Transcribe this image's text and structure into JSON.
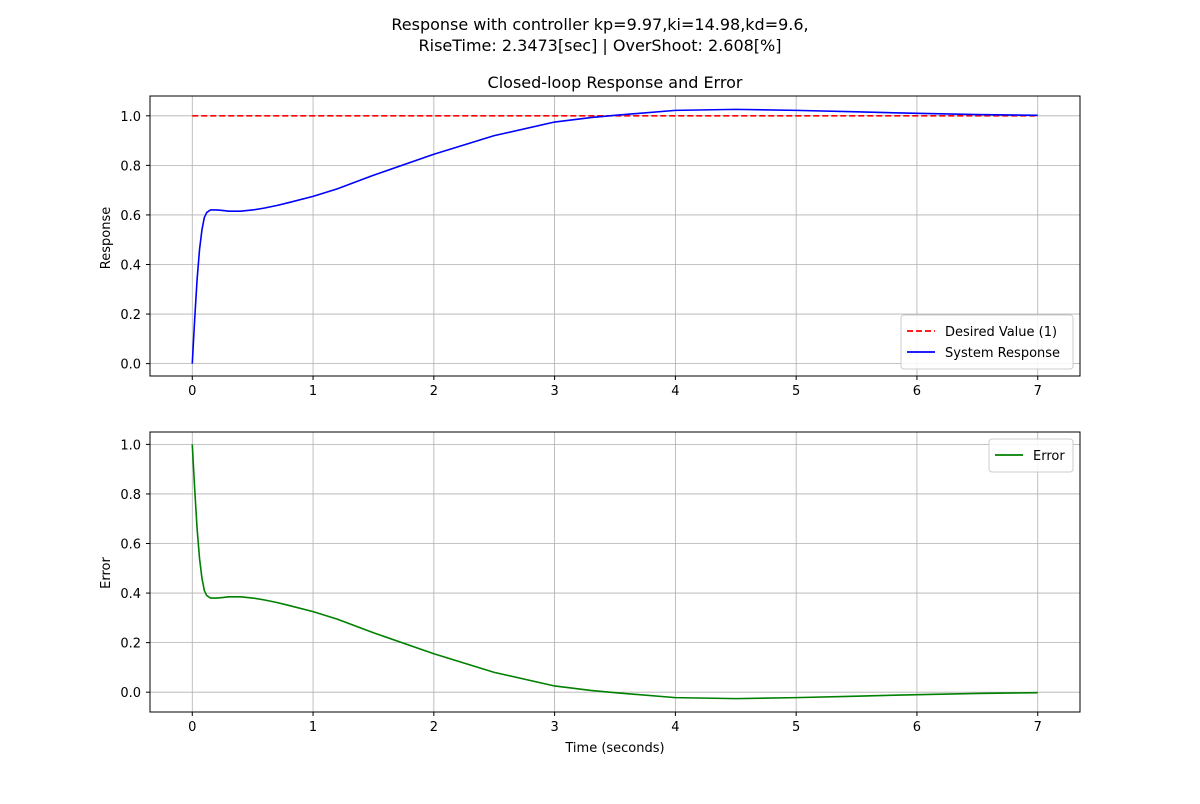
{
  "figure": {
    "suptitle_line1": "Response with controller kp=9.97,ki=14.98,kd=9.6,",
    "suptitle_line2": "RiseTime: 2.3473[sec] | OverShoot: 2.608[%]"
  },
  "colors": {
    "desired": "#ff0000",
    "response": "#0000ff",
    "error": "#008000",
    "grid": "#b0b0b0"
  },
  "chart_data": [
    {
      "type": "line",
      "title": "Closed-loop Response and Error",
      "xlabel": "",
      "ylabel": "Response",
      "xlim": [
        -0.35,
        7.35
      ],
      "ylim": [
        -0.05,
        1.08
      ],
      "xticks": [
        0,
        1,
        2,
        3,
        4,
        5,
        6,
        7
      ],
      "yticks": [
        0.0,
        0.2,
        0.4,
        0.6,
        0.8,
        1.0
      ],
      "xtick_labels": [
        "0",
        "1",
        "2",
        "3",
        "4",
        "5",
        "6",
        "7"
      ],
      "ytick_labels": [
        "0.0",
        "0.2",
        "0.4",
        "0.6",
        "0.8",
        "1.0"
      ],
      "grid": true,
      "legend": "lower-right",
      "series": [
        {
          "name": "Desired Value (1)",
          "style": "dashed",
          "color": "#ff0000",
          "x": [
            0,
            7
          ],
          "y": [
            1.0,
            1.0
          ]
        },
        {
          "name": "System Response",
          "style": "solid",
          "color": "#0000ff",
          "x": [
            0,
            0.02,
            0.04,
            0.06,
            0.08,
            0.1,
            0.12,
            0.15,
            0.2,
            0.25,
            0.3,
            0.4,
            0.5,
            0.6,
            0.7,
            0.8,
            1.0,
            1.2,
            1.5,
            2.0,
            2.5,
            3.0,
            3.3,
            3.5,
            4.0,
            4.5,
            5.0,
            5.5,
            6.0,
            6.5,
            7.0
          ],
          "y": [
            0.0,
            0.18,
            0.34,
            0.46,
            0.54,
            0.59,
            0.61,
            0.62,
            0.62,
            0.618,
            0.615,
            0.615,
            0.62,
            0.628,
            0.638,
            0.65,
            0.675,
            0.705,
            0.76,
            0.845,
            0.92,
            0.975,
            0.993,
            1.002,
            1.022,
            1.026,
            1.022,
            1.016,
            1.01,
            1.005,
            1.002
          ]
        }
      ]
    },
    {
      "type": "line",
      "title": "",
      "xlabel": "Time (seconds)",
      "ylabel": "Error",
      "xlim": [
        -0.35,
        7.35
      ],
      "ylim": [
        -0.08,
        1.05
      ],
      "xticks": [
        0,
        1,
        2,
        3,
        4,
        5,
        6,
        7
      ],
      "yticks": [
        0.0,
        0.2,
        0.4,
        0.6,
        0.8,
        1.0
      ],
      "xtick_labels": [
        "0",
        "1",
        "2",
        "3",
        "4",
        "5",
        "6",
        "7"
      ],
      "ytick_labels": [
        "0.0",
        "0.2",
        "0.4",
        "0.6",
        "0.8",
        "1.0"
      ],
      "grid": true,
      "legend": "upper-right",
      "series": [
        {
          "name": "Error",
          "style": "solid",
          "color": "#008000",
          "x": [
            0,
            0.02,
            0.04,
            0.06,
            0.08,
            0.1,
            0.12,
            0.15,
            0.2,
            0.25,
            0.3,
            0.4,
            0.5,
            0.6,
            0.7,
            0.8,
            1.0,
            1.2,
            1.5,
            2.0,
            2.5,
            3.0,
            3.3,
            3.5,
            4.0,
            4.5,
            5.0,
            5.5,
            6.0,
            6.5,
            7.0
          ],
          "y": [
            1.0,
            0.82,
            0.66,
            0.54,
            0.46,
            0.41,
            0.39,
            0.38,
            0.38,
            0.382,
            0.385,
            0.385,
            0.38,
            0.372,
            0.362,
            0.35,
            0.325,
            0.295,
            0.24,
            0.155,
            0.08,
            0.025,
            0.007,
            -0.002,
            -0.022,
            -0.026,
            -0.022,
            -0.016,
            -0.01,
            -0.005,
            -0.002
          ]
        }
      ]
    }
  ]
}
